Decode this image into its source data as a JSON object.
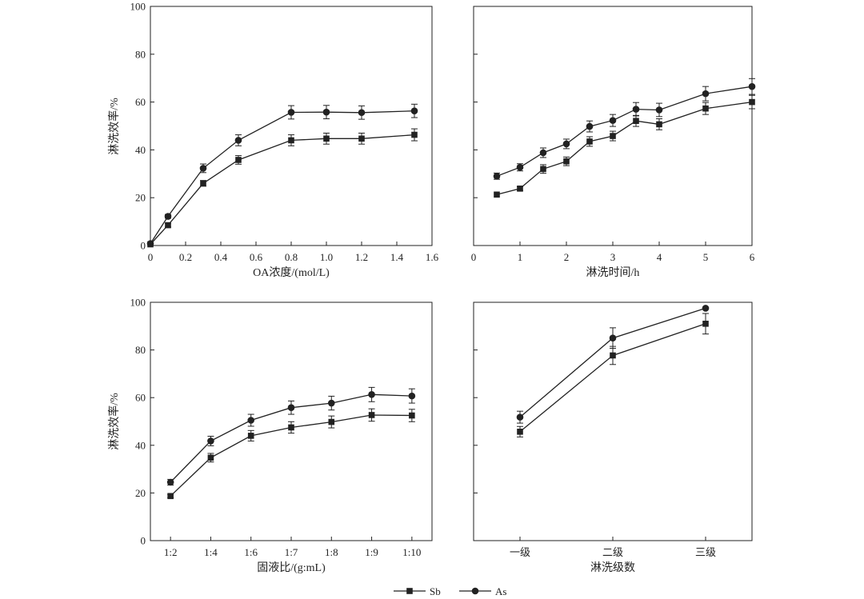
{
  "chart_data": [
    {
      "type": "line",
      "xlabel": "OA浓度/(mol/L)",
      "ylabel": "淋洗效率/%",
      "xlim": [
        0,
        1.6
      ],
      "ylim": [
        0,
        100
      ],
      "xticks": [
        0,
        0.2,
        0.4,
        0.6,
        0.8,
        1.0,
        1.2,
        1.4,
        1.6
      ],
      "xtick_labels": [
        "0",
        "0.2",
        "0.4",
        "0.6",
        "0.8",
        "1.0",
        "1.2",
        "1.4",
        "1.6"
      ],
      "yticks": [
        0,
        20,
        40,
        60,
        80,
        100
      ],
      "ytick_labels": [
        "0",
        "20",
        "40",
        "60",
        "80",
        "100"
      ],
      "x": [
        0,
        0.1,
        0.3,
        0.5,
        0.8,
        1.0,
        1.2,
        1.5
      ],
      "series": [
        {
          "name": "Sb",
          "marker": "square",
          "values": [
            0.5,
            8.5,
            26,
            35.8,
            44,
            44.7,
            44.7,
            46.3
          ],
          "error": [
            0,
            0.8,
            1.2,
            1.8,
            2.3,
            2.3,
            2.3,
            2.5
          ]
        },
        {
          "name": "As",
          "marker": "circle",
          "values": [
            0.8,
            12.2,
            32.3,
            44,
            55.7,
            55.8,
            55.6,
            56.3
          ],
          "error": [
            0,
            0.8,
            1.8,
            2.3,
            2.8,
            2.8,
            2.8,
            2.8
          ]
        }
      ]
    },
    {
      "type": "line",
      "xlabel": "淋洗时间/h",
      "ylabel": "",
      "xlim": [
        0,
        6
      ],
      "ylim": [
        0,
        100
      ],
      "xticks": [
        0,
        1,
        2,
        3,
        4,
        5,
        6
      ],
      "xtick_labels": [
        "0",
        "1",
        "2",
        "3",
        "4",
        "5",
        "6"
      ],
      "yticks": [
        0,
        20,
        40,
        60,
        80,
        100
      ],
      "ytick_labels": [],
      "x": [
        0.5,
        1,
        1.5,
        2,
        2.5,
        3,
        3.5,
        4,
        5,
        6
      ],
      "series": [
        {
          "name": "Sb",
          "marker": "square",
          "values": [
            21.3,
            23.8,
            32,
            35.2,
            43.5,
            45.8,
            52.1,
            50.7,
            57.3,
            60
          ],
          "error": [
            0,
            0.8,
            1.8,
            1.8,
            2,
            2,
            2.3,
            2.3,
            2.5,
            2.8
          ]
        },
        {
          "name": "As",
          "marker": "circle",
          "values": [
            29,
            32.7,
            38.8,
            42.5,
            49.8,
            52.3,
            57,
            56.7,
            63.5,
            66.5
          ],
          "error": [
            1.3,
            1.5,
            2,
            2,
            2.3,
            2.5,
            2.8,
            2.8,
            3,
            3.3
          ]
        }
      ]
    },
    {
      "type": "line",
      "xlabel": "固液比/(g:mL)",
      "ylabel": "淋洗效率/%",
      "xlim": [
        0.5,
        7.5
      ],
      "ylim": [
        0,
        100
      ],
      "xticks": [
        1,
        2,
        3,
        4,
        5,
        6,
        7
      ],
      "xtick_labels": [
        "1:2",
        "1:4",
        "1:6",
        "1:7",
        "1:8",
        "1:9",
        "1:10"
      ],
      "yticks": [
        0,
        20,
        40,
        60,
        80,
        100
      ],
      "ytick_labels": [
        "0",
        "20",
        "40",
        "60",
        "80",
        "100"
      ],
      "x": [
        1,
        2,
        3,
        4,
        5,
        6,
        7
      ],
      "series": [
        {
          "name": "Sb",
          "marker": "square",
          "values": [
            18.7,
            34.8,
            44,
            47.5,
            49.8,
            52.7,
            52.5
          ],
          "error": [
            0.7,
            1.8,
            2.2,
            2.4,
            2.5,
            2.6,
            2.6
          ]
        },
        {
          "name": "As",
          "marker": "circle",
          "values": [
            24.5,
            41.8,
            50.5,
            55.8,
            57.7,
            61.3,
            60.7
          ],
          "error": [
            1.2,
            2,
            2.5,
            2.8,
            2.9,
            3,
            3
          ]
        }
      ]
    },
    {
      "type": "line",
      "xlabel": "淋洗级数",
      "ylabel": "",
      "xlim": [
        0.5,
        3.5
      ],
      "ylim": [
        0,
        100
      ],
      "xticks": [
        1,
        2,
        3
      ],
      "xtick_labels": [
        "一级",
        "二级",
        "三级"
      ],
      "yticks": [
        0,
        20,
        40,
        60,
        80,
        100
      ],
      "ytick_labels": [],
      "x": [
        1,
        2,
        3
      ],
      "series": [
        {
          "name": "Sb",
          "marker": "square",
          "values": [
            45.7,
            77.7,
            91
          ],
          "error": [
            2.2,
            3.8,
            4.3
          ]
        },
        {
          "name": "As",
          "marker": "circle",
          "values": [
            51.8,
            85,
            97.5
          ],
          "error": [
            2.5,
            4.3,
            0
          ]
        }
      ]
    }
  ],
  "legend": {
    "placement": "bottom-center",
    "items": [
      {
        "label": "Sb",
        "marker": "square"
      },
      {
        "label": "As",
        "marker": "circle"
      }
    ]
  },
  "colors": {
    "ink": "#222222",
    "background": "#ffffff"
  }
}
